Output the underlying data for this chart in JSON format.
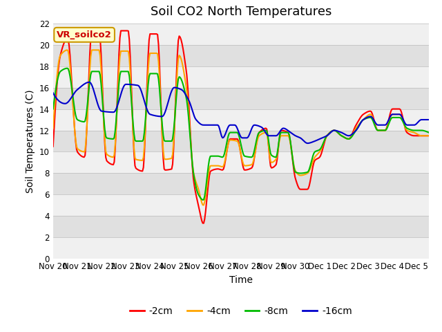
{
  "title": "Soil CO2 North Temperatures",
  "ylabel": "Soil Temperatures (C)",
  "xlabel": "Time",
  "ylim": [
    0,
    22
  ],
  "legend_label": "VR_soilco2",
  "line_colors": {
    "2cm": "#ff0000",
    "4cm": "#ffa500",
    "8cm": "#00bb00",
    "16cm": "#0000cc"
  },
  "legend_entries": [
    "-2cm",
    "-4cm",
    "-8cm",
    "-16cm"
  ],
  "xtick_labels": [
    "Nov 20",
    "Nov 21",
    "Nov 22",
    "Nov 23",
    "Nov 24",
    "Nov 25",
    "Nov 26",
    "Nov 27",
    "Nov 28",
    "Nov 29",
    "Nov 30",
    "Dec 1",
    "Dec 2",
    "Dec 3",
    "Dec 4",
    "Dec 5"
  ],
  "background_color": "#ffffff",
  "plot_bg_color": "#e0e0e0",
  "stripe_color": "#f0f0f0",
  "title_fontsize": 13,
  "axis_fontsize": 10,
  "tick_fontsize": 8.5
}
